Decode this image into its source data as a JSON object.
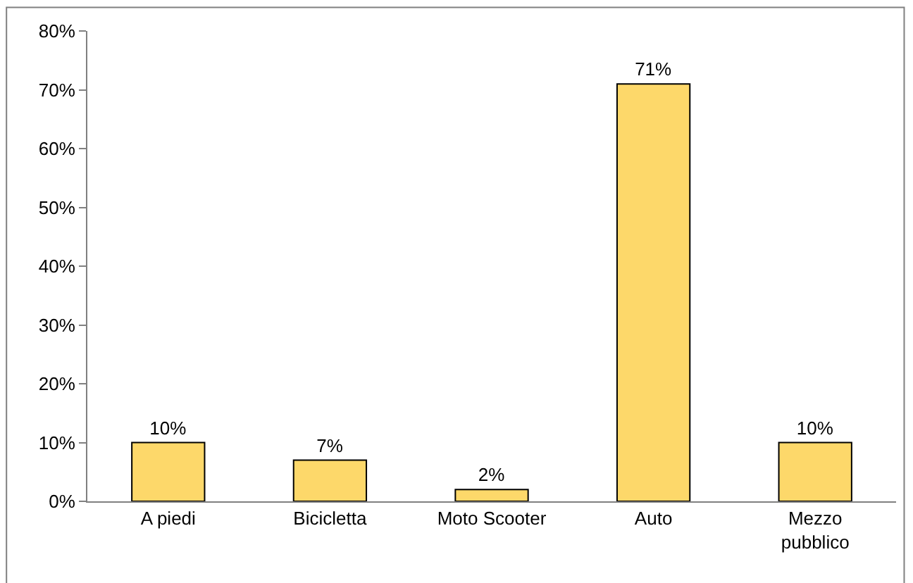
{
  "chart_data": {
    "type": "bar",
    "categories": [
      "A piedi",
      "Bicicletta",
      "Moto Scooter",
      "Auto",
      "Mezzo pubblico"
    ],
    "values": [
      10,
      7,
      2,
      71,
      10
    ],
    "value_labels": [
      "10%",
      "7%",
      "2%",
      "71%",
      "10%"
    ],
    "color": "#fdd86a",
    "ylim": [
      0,
      80
    ],
    "yticks": [
      {
        "value": 0,
        "label": "0%"
      },
      {
        "value": 10,
        "label": "10%"
      },
      {
        "value": 20,
        "label": "20%"
      },
      {
        "value": 30,
        "label": "30%"
      },
      {
        "value": 40,
        "label": "40%"
      },
      {
        "value": 50,
        "label": "50%"
      },
      {
        "value": 60,
        "label": "60%"
      },
      {
        "value": 70,
        "label": "70%"
      },
      {
        "value": 80,
        "label": "80%"
      }
    ]
  }
}
